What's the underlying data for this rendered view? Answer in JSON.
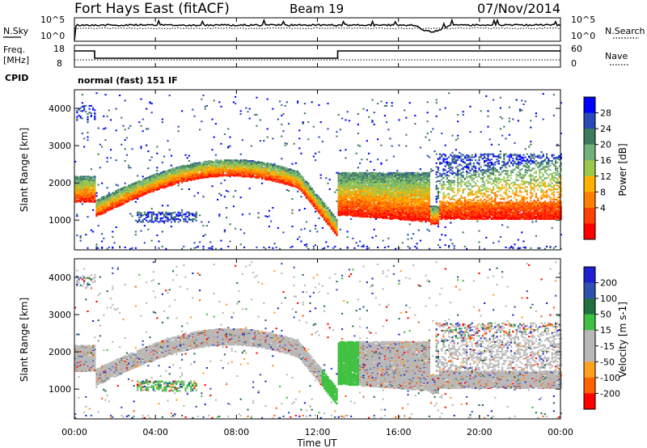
{
  "header": {
    "station": "Fort Hays East (fitACF)",
    "beam": "Beam 19",
    "date": "07/Nov/2014"
  },
  "noise_panel": {
    "left_label": "N.Sky",
    "right_label": "N.Search",
    "left_ticks": [
      "10^5",
      "10^0"
    ],
    "right_ticks": [
      "10^5",
      "10^0"
    ]
  },
  "freq_panel": {
    "left_label_line1": "Freq.",
    "left_label_line2": "[MHz]",
    "right_label": "Nave",
    "left_ticks": [
      "18",
      "8"
    ],
    "right_ticks": [
      "60",
      "0"
    ],
    "cpid_label": "CPID",
    "mode_text": "normal (fast) 151 IF"
  },
  "colors": {
    "power_scale": [
      "#0000ff",
      "#2a4ab8",
      "#3f7a5e",
      "#72b07a",
      "#9ac84a",
      "#ffb000",
      "#ff8000",
      "#ff4000",
      "#ff0000"
    ],
    "velocity_scale": [
      "#2020d0",
      "#3050b0",
      "#207040",
      "#40c040",
      "#b8b8b8",
      "#b8b8b8",
      "#ffa020",
      "#ff6000",
      "#ff0000"
    ]
  },
  "chart_data": [
    {
      "type": "heatmap",
      "name": "power",
      "ylabel": "Slant Range [km]",
      "y_ticks": [
        1000,
        2000,
        3000,
        4000
      ],
      "ylim": [
        200,
        4500
      ],
      "colorbar_label": "Power [dB]",
      "colorbar_ticks": [
        "28",
        "24",
        "20",
        "16",
        "12",
        "8",
        "4"
      ]
    },
    {
      "type": "heatmap",
      "name": "velocity",
      "ylabel": "Slant Range [km]",
      "y_ticks": [
        1000,
        2000,
        3000,
        4000
      ],
      "ylim": [
        200,
        4500
      ],
      "colorbar_label": "Velocity [m s-1]",
      "colorbar_ticks": [
        "200",
        "100",
        "50",
        "15",
        "-15",
        "-50",
        "-100",
        "-200"
      ],
      "xlabel": "Time UT",
      "x_ticks": [
        "00:00",
        "04:00",
        "08:00",
        "12:00",
        "16:00",
        "20:00",
        "00:00"
      ],
      "xlim_hours": [
        0,
        24
      ]
    }
  ]
}
